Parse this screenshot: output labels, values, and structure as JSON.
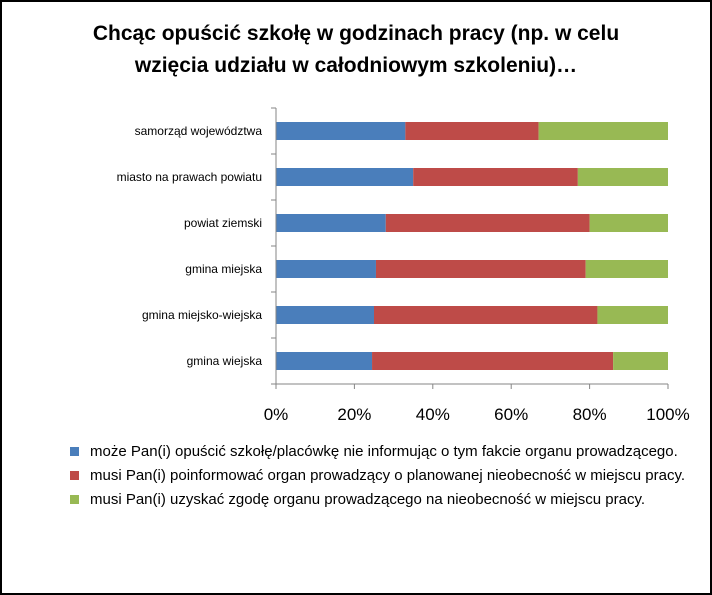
{
  "chart_data": {
    "type": "bar",
    "orientation": "horizontal",
    "stacked": "percent",
    "title_lines": [
      "Chcąc opuścić szkołę w godzinach pracy (np. w celu",
      "wzięcia udziału w całodniowym szkoleniu)…"
    ],
    "categories": [
      "samorząd województwa",
      "miasto na prawach powiatu",
      "powiat ziemski",
      "gmina miejska",
      "gmina miejsko-wiejska",
      "gmina wiejska"
    ],
    "series": [
      {
        "name": "może Pan(i) opuścić szkołę/placówkę nie informując o tym fakcie organu prowadzącego.",
        "color": "#4a7ebb",
        "values": [
          33,
          35,
          28,
          25.5,
          25,
          24.5
        ]
      },
      {
        "name": "musi Pan(i) poinformować organ prowadzący o planowanej nieobecność w miejscu pracy.",
        "color": "#be4b48",
        "values": [
          34,
          42,
          52,
          53.5,
          57,
          61.5
        ]
      },
      {
        "name": "musi Pan(i) uzyskać zgodę organu prowadzącego na nieobecność w miejscu pracy.",
        "color": "#98b954",
        "values": [
          33,
          23,
          20,
          21,
          18,
          14
        ]
      }
    ],
    "xlim": [
      0,
      100
    ],
    "x_ticks": [
      "0%",
      "20%",
      "40%",
      "60%",
      "80%",
      "100%"
    ],
    "grid": false,
    "legend_position": "bottom"
  }
}
